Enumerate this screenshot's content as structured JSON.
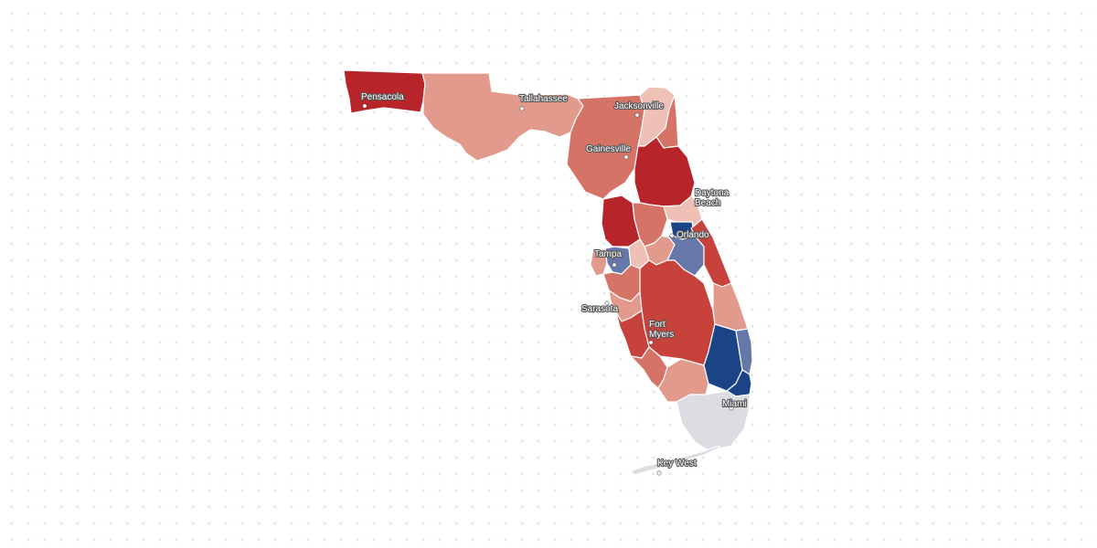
{
  "map": {
    "region": "Florida",
    "colors": {
      "strong_rep": "#b7252a",
      "rep": "#c8423c",
      "lean_rep": "#d57466",
      "slight_rep": "#e19a8b",
      "tilt_rep": "#efc1b6",
      "lean_dem": "#6677aa",
      "strong_dem": "#1b4487",
      "no_data": "#dcdde2"
    },
    "districts": [
      {
        "id": "panhandle-west",
        "category": "strong_rep"
      },
      {
        "id": "panhandle-east",
        "category": "slight_rep"
      },
      {
        "id": "north-central",
        "category": "lean_rep"
      },
      {
        "id": "jacksonville-coast",
        "category": "tilt_rep"
      },
      {
        "id": "st-johns",
        "category": "lean_rep"
      },
      {
        "id": "volusia",
        "category": "strong_rep"
      },
      {
        "id": "daytona-south",
        "category": "tilt_rep"
      },
      {
        "id": "pasco-hernando",
        "category": "strong_rep"
      },
      {
        "id": "citrus-sumter",
        "category": "lean_rep"
      },
      {
        "id": "lake",
        "category": "slight_rep"
      },
      {
        "id": "orlando-core",
        "category": "strong_dem"
      },
      {
        "id": "orlando-south",
        "category": "lean_dem"
      },
      {
        "id": "brevard",
        "category": "rep"
      },
      {
        "id": "pinellas",
        "category": "slight_rep"
      },
      {
        "id": "tampa",
        "category": "lean_dem"
      },
      {
        "id": "brandon",
        "category": "tilt_rep"
      },
      {
        "id": "heartland",
        "category": "rep"
      },
      {
        "id": "manatee",
        "category": "lean_rep"
      },
      {
        "id": "sarasota",
        "category": "slight_rep"
      },
      {
        "id": "charlotte",
        "category": "rep"
      },
      {
        "id": "lee",
        "category": "lean_rep"
      },
      {
        "id": "collier",
        "category": "slight_rep"
      },
      {
        "id": "st-lucie",
        "category": "slight_rep"
      },
      {
        "id": "palm-beach-west",
        "category": "strong_dem"
      },
      {
        "id": "palm-beach-coast",
        "category": "lean_dem"
      },
      {
        "id": "broward",
        "category": "strong_dem"
      },
      {
        "id": "miami-dade",
        "category": "no_data"
      },
      {
        "id": "keys",
        "category": "no_data"
      }
    ],
    "cities": [
      {
        "id": "pensacola",
        "label": "Pensacola"
      },
      {
        "id": "tallahassee",
        "label": "Tallahassee"
      },
      {
        "id": "jacksonville",
        "label": "Jacksonville"
      },
      {
        "id": "gainesville",
        "label": "Gainesville"
      },
      {
        "id": "daytona-beach",
        "label": "Daytona Beach"
      },
      {
        "id": "orlando",
        "label": "Orlando"
      },
      {
        "id": "tampa",
        "label": "Tampa"
      },
      {
        "id": "sarasota",
        "label": "Sarasota"
      },
      {
        "id": "fort-myers",
        "label": "Fort Myers"
      },
      {
        "id": "miami",
        "label": "Miami"
      },
      {
        "id": "key-west",
        "label": "Key West"
      }
    ]
  }
}
